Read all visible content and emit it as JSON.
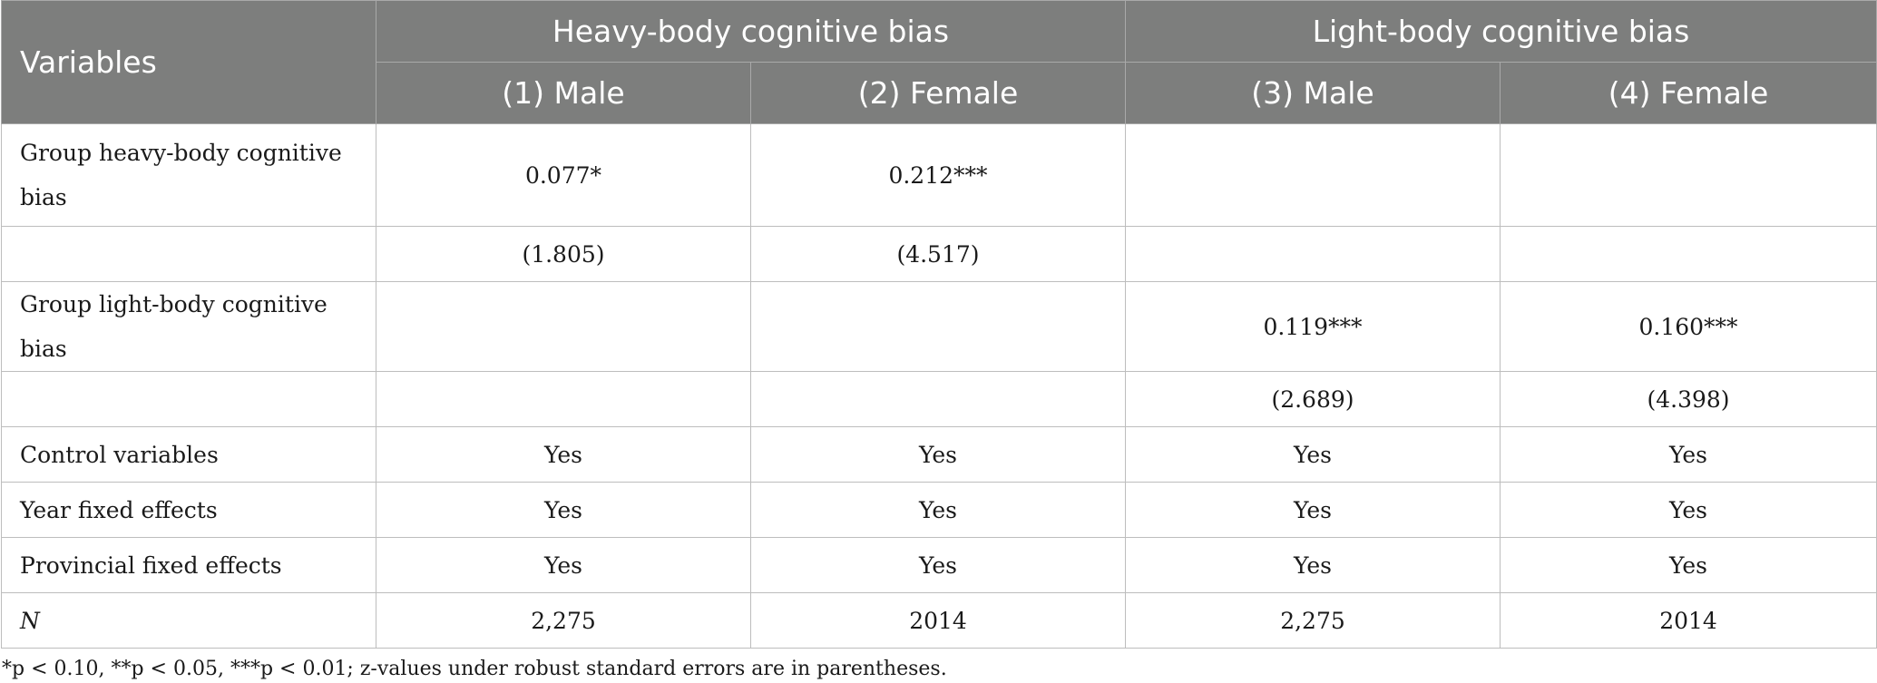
{
  "table": {
    "header": {
      "variables_label": "Variables",
      "group_heavy": "Heavy-body cognitive bias",
      "group_light": "Light-body cognitive bias",
      "columns": [
        "(1) Male",
        "(2) Female",
        "(3) Male",
        "(4) Female"
      ]
    },
    "rows": [
      {
        "label": "Group heavy-body cognitive bias",
        "cells": [
          "0.077*",
          "0.212***",
          "",
          ""
        ]
      },
      {
        "label": "",
        "cells": [
          "(1.805)",
          "(4.517)",
          "",
          ""
        ]
      },
      {
        "label": "Group light-body cognitive bias",
        "cells": [
          "",
          "",
          "0.119***",
          "0.160***"
        ]
      },
      {
        "label": "",
        "cells": [
          "",
          "",
          "(2.689)",
          "(4.398)"
        ]
      },
      {
        "label": "Control variables",
        "cells": [
          "Yes",
          "Yes",
          "Yes",
          "Yes"
        ]
      },
      {
        "label": "Year fixed effects",
        "cells": [
          "Yes",
          "Yes",
          "Yes",
          "Yes"
        ]
      },
      {
        "label": "Provincial fixed effects",
        "cells": [
          "Yes",
          "Yes",
          "Yes",
          "Yes"
        ]
      },
      {
        "label": "N",
        "cells": [
          "2,275",
          "2014",
          "2,275",
          "2014"
        ]
      }
    ]
  },
  "footnote": "*p < 0.10, **p < 0.05, ***p < 0.01; z-values under robust standard errors are in parentheses."
}
